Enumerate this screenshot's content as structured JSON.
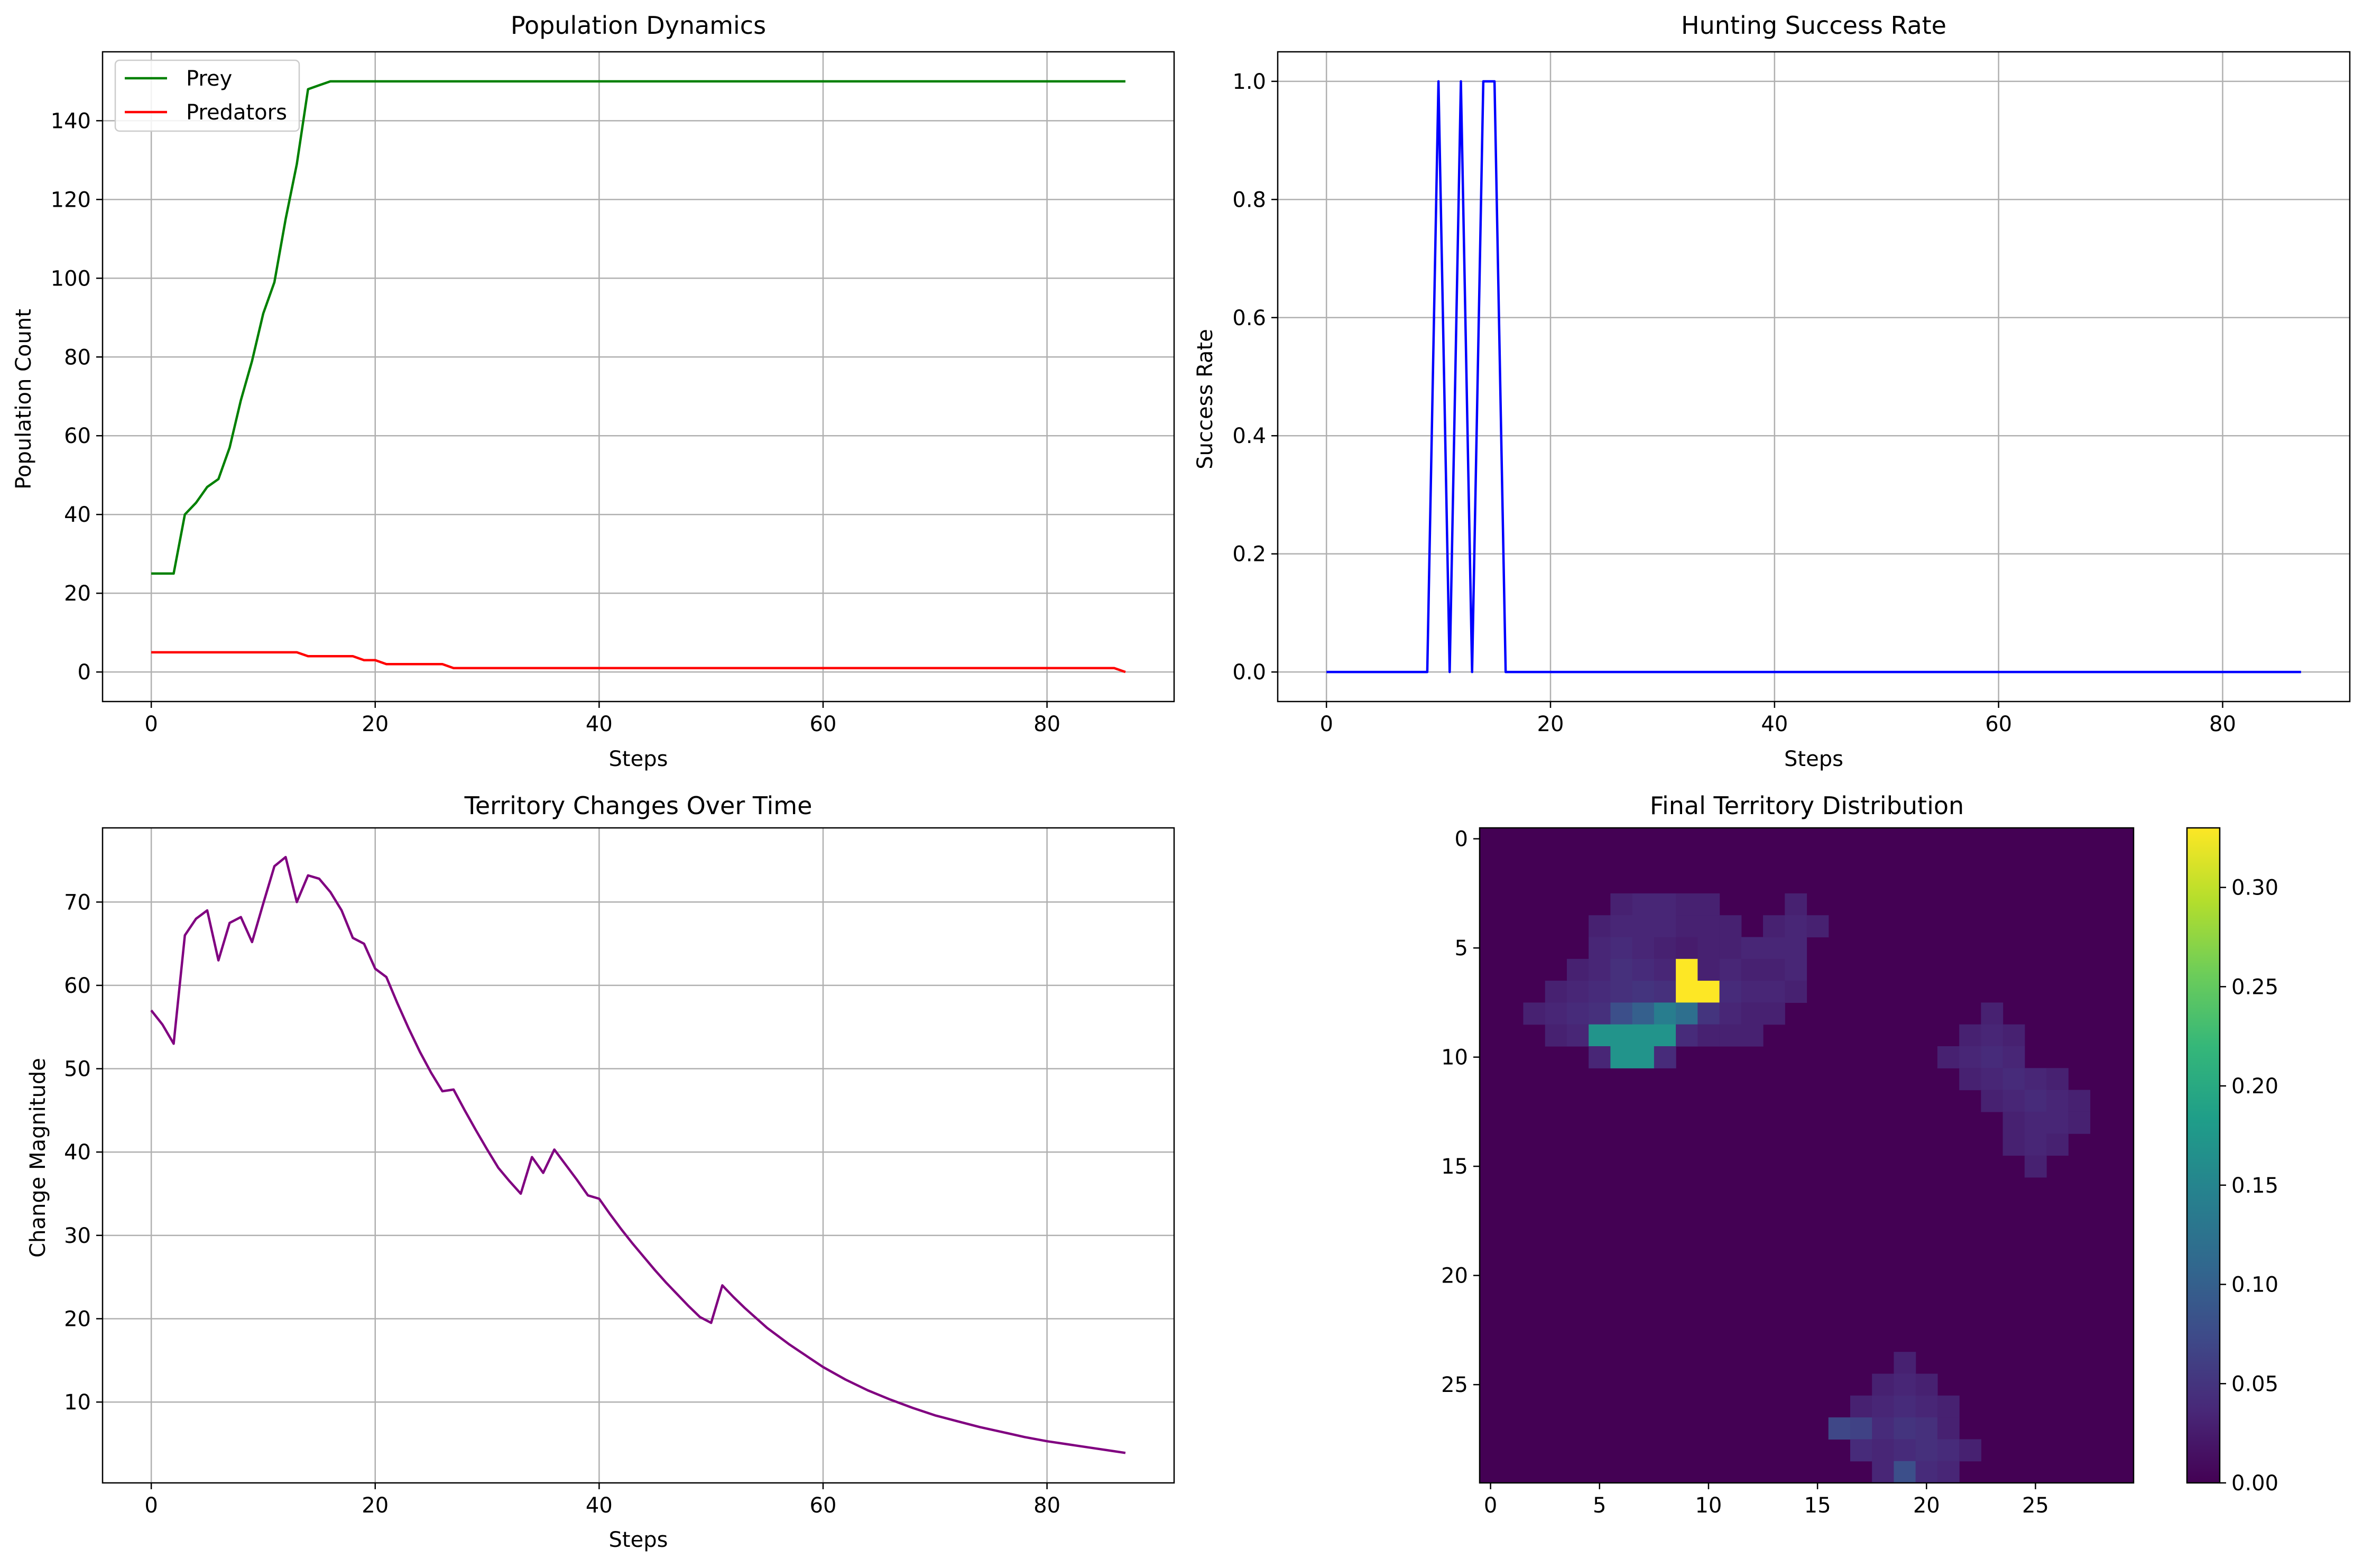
{
  "colors": {
    "prey": "#008000",
    "predators": "#ff0000",
    "success": "#0000ff",
    "territory": "#800080",
    "grid": "#b0b0b0"
  },
  "chart_data": [
    {
      "id": "population",
      "type": "line",
      "title": "Population Dynamics",
      "xlabel": "Steps",
      "ylabel": "Population Count",
      "xlim": [
        -4.35,
        91.35
      ],
      "ylim": [
        -7.5,
        157.5
      ],
      "xticks": [
        0,
        20,
        40,
        60,
        80
      ],
      "yticks": [
        0,
        20,
        40,
        60,
        80,
        100,
        120,
        140
      ],
      "grid": true,
      "legend": "top-left",
      "series": [
        {
          "name": "Prey",
          "color": "#008000",
          "x": [
            0,
            1,
            2,
            3,
            4,
            5,
            6,
            7,
            8,
            9,
            10,
            11,
            12,
            13,
            14,
            15,
            16,
            17,
            87
          ],
          "y": [
            25,
            25,
            25,
            40,
            43,
            47,
            49,
            57,
            69,
            79,
            91,
            99,
            115,
            129,
            148,
            149,
            150,
            150,
            150
          ]
        },
        {
          "name": "Predators",
          "color": "#ff0000",
          "x": [
            0,
            13,
            14,
            18,
            19,
            20,
            21,
            26,
            27,
            86,
            87
          ],
          "y": [
            5,
            5,
            4,
            4,
            3,
            3,
            2,
            2,
            1,
            1,
            0
          ]
        }
      ]
    },
    {
      "id": "hunting",
      "type": "line",
      "title": "Hunting Success Rate",
      "xlabel": "Steps",
      "ylabel": "Success Rate",
      "xlim": [
        -4.35,
        91.35
      ],
      "ylim": [
        -0.05,
        1.05
      ],
      "xticks": [
        0,
        20,
        40,
        60,
        80
      ],
      "yticks": [
        0.0,
        0.2,
        0.4,
        0.6,
        0.8,
        1.0
      ],
      "ytick_labels": [
        "0.0",
        "0.2",
        "0.4",
        "0.6",
        "0.8",
        "1.0"
      ],
      "grid": true,
      "series": [
        {
          "color": "#0000ff",
          "x": [
            0,
            9,
            10,
            11,
            12,
            13,
            14,
            15,
            16,
            87
          ],
          "y": [
            0,
            0,
            1,
            0,
            1,
            0,
            1,
            1,
            0,
            0
          ]
        }
      ]
    },
    {
      "id": "territory_changes",
      "type": "line",
      "title": "Territory Changes Over Time",
      "xlabel": "Steps",
      "ylabel": "Change Magnitude",
      "xlim": [
        -4.35,
        91.35
      ],
      "ylim": [
        0.3,
        78.9
      ],
      "xticks": [
        0,
        20,
        40,
        60,
        80
      ],
      "yticks": [
        10,
        20,
        30,
        40,
        50,
        60,
        70
      ],
      "grid": true,
      "series": [
        {
          "color": "#800080",
          "x": [
            0,
            1,
            2,
            3,
            4,
            5,
            6,
            7,
            8,
            9,
            10,
            11,
            12,
            13,
            14,
            15,
            16,
            17,
            18,
            19,
            20,
            21,
            22,
            23,
            24,
            25,
            26,
            27,
            28,
            29,
            30,
            31,
            32,
            33,
            34,
            35,
            36,
            37,
            38,
            39,
            40,
            41,
            42,
            43,
            44,
            45,
            46,
            47,
            48,
            49,
            50,
            51,
            52,
            53,
            54,
            55,
            56,
            57,
            58,
            59,
            60,
            62,
            64,
            66,
            68,
            70,
            72,
            74,
            76,
            78,
            80,
            82,
            84,
            86,
            87
          ],
          "y": [
            57.0,
            55.3,
            53.0,
            66.0,
            68.0,
            69.0,
            63.0,
            67.5,
            68.2,
            65.2,
            69.8,
            74.3,
            75.4,
            70.0,
            73.2,
            72.8,
            71.2,
            69.0,
            65.7,
            65.0,
            62.0,
            61.0,
            57.8,
            54.8,
            52.0,
            49.5,
            47.3,
            47.5,
            45.0,
            42.6,
            40.3,
            38.1,
            36.5,
            35.0,
            39.4,
            37.5,
            40.3,
            38.5,
            36.7,
            34.8,
            34.4,
            32.5,
            30.7,
            29.0,
            27.4,
            25.8,
            24.3,
            22.9,
            21.5,
            20.2,
            19.5,
            24.0,
            22.6,
            21.3,
            20.1,
            18.9,
            17.9,
            16.9,
            16.0,
            15.1,
            14.2,
            12.7,
            11.4,
            10.3,
            9.3,
            8.4,
            7.7,
            7.0,
            6.4,
            5.8,
            5.3,
            4.9,
            4.5,
            4.1,
            3.9
          ]
        }
      ]
    },
    {
      "id": "final_territory",
      "type": "heatmap",
      "title": "Final Territory Distribution",
      "grid_size": 30,
      "xticks": [
        0,
        5,
        10,
        15,
        20,
        25
      ],
      "yticks": [
        0,
        5,
        10,
        15,
        20,
        25
      ],
      "colorbar_ticks": [
        0.0,
        0.05,
        0.1,
        0.15,
        0.2,
        0.25,
        0.3
      ],
      "colorbar_labels": [
        "0.00",
        "0.05",
        "0.10",
        "0.15",
        "0.20",
        "0.25",
        "0.30"
      ],
      "vmin": 0.0,
      "vmax": 0.33,
      "colormap": "viridis",
      "cells": [
        [
          3,
          6,
          0.03
        ],
        [
          3,
          7,
          0.035
        ],
        [
          3,
          8,
          0.035
        ],
        [
          3,
          9,
          0.03
        ],
        [
          3,
          10,
          0.03
        ],
        [
          4,
          5,
          0.03
        ],
        [
          4,
          6,
          0.035
        ],
        [
          4,
          7,
          0.035
        ],
        [
          4,
          8,
          0.035
        ],
        [
          4,
          9,
          0.03
        ],
        [
          4,
          10,
          0.03
        ],
        [
          4,
          11,
          0.03
        ],
        [
          5,
          5,
          0.035
        ],
        [
          5,
          6,
          0.04
        ],
        [
          5,
          7,
          0.035
        ],
        [
          5,
          8,
          0.03
        ],
        [
          5,
          9,
          0.025
        ],
        [
          5,
          10,
          0.03
        ],
        [
          5,
          11,
          0.03
        ],
        [
          5,
          12,
          0.035
        ],
        [
          5,
          13,
          0.035
        ],
        [
          5,
          14,
          0.035
        ],
        [
          6,
          4,
          0.03
        ],
        [
          6,
          5,
          0.035
        ],
        [
          6,
          6,
          0.045
        ],
        [
          6,
          7,
          0.04
        ],
        [
          6,
          8,
          0.035
        ],
        [
          6,
          9,
          0.33
        ],
        [
          6,
          10,
          0.03
        ],
        [
          6,
          11,
          0.035
        ],
        [
          6,
          12,
          0.03
        ],
        [
          6,
          13,
          0.03
        ],
        [
          6,
          14,
          0.035
        ],
        [
          7,
          3,
          0.03
        ],
        [
          7,
          4,
          0.035
        ],
        [
          7,
          5,
          0.04
        ],
        [
          7,
          6,
          0.045
        ],
        [
          7,
          7,
          0.05
        ],
        [
          7,
          8,
          0.045
        ],
        [
          7,
          9,
          0.33
        ],
        [
          7,
          10,
          0.33
        ],
        [
          7,
          11,
          0.04
        ],
        [
          7,
          12,
          0.035
        ],
        [
          7,
          13,
          0.035
        ],
        [
          7,
          14,
          0.03
        ],
        [
          8,
          2,
          0.03
        ],
        [
          8,
          3,
          0.035
        ],
        [
          8,
          4,
          0.04
        ],
        [
          8,
          5,
          0.045
        ],
        [
          8,
          6,
          0.08
        ],
        [
          8,
          7,
          0.1
        ],
        [
          8,
          8,
          0.14
        ],
        [
          8,
          9,
          0.12
        ],
        [
          8,
          10,
          0.05
        ],
        [
          8,
          11,
          0.035
        ],
        [
          8,
          12,
          0.03
        ],
        [
          8,
          13,
          0.03
        ],
        [
          9,
          3,
          0.03
        ],
        [
          9,
          4,
          0.035
        ],
        [
          9,
          5,
          0.17
        ],
        [
          9,
          6,
          0.17
        ],
        [
          9,
          7,
          0.17
        ],
        [
          9,
          8,
          0.17
        ],
        [
          9,
          9,
          0.04
        ],
        [
          9,
          10,
          0.03
        ],
        [
          9,
          11,
          0.03
        ],
        [
          9,
          12,
          0.03
        ],
        [
          10,
          5,
          0.035
        ],
        [
          10,
          6,
          0.17
        ],
        [
          10,
          7,
          0.17
        ],
        [
          10,
          8,
          0.04
        ],
        [
          3,
          14,
          0.03
        ],
        [
          4,
          13,
          0.03
        ],
        [
          4,
          14,
          0.035
        ],
        [
          4,
          15,
          0.03
        ],
        [
          8,
          23,
          0.03
        ],
        [
          9,
          22,
          0.03
        ],
        [
          9,
          23,
          0.035
        ],
        [
          9,
          24,
          0.03
        ],
        [
          10,
          21,
          0.03
        ],
        [
          10,
          22,
          0.035
        ],
        [
          10,
          23,
          0.04
        ],
        [
          10,
          24,
          0.035
        ],
        [
          11,
          22,
          0.03
        ],
        [
          11,
          23,
          0.035
        ],
        [
          11,
          24,
          0.04
        ],
        [
          11,
          25,
          0.035
        ],
        [
          11,
          26,
          0.03
        ],
        [
          12,
          23,
          0.03
        ],
        [
          12,
          24,
          0.035
        ],
        [
          12,
          25,
          0.04
        ],
        [
          12,
          26,
          0.035
        ],
        [
          12,
          27,
          0.03
        ],
        [
          13,
          24,
          0.03
        ],
        [
          13,
          25,
          0.035
        ],
        [
          13,
          26,
          0.035
        ],
        [
          13,
          27,
          0.03
        ],
        [
          14,
          24,
          0.03
        ],
        [
          14,
          25,
          0.035
        ],
        [
          14,
          26,
          0.03
        ],
        [
          15,
          25,
          0.03
        ],
        [
          24,
          19,
          0.03
        ],
        [
          25,
          18,
          0.03
        ],
        [
          25,
          19,
          0.035
        ],
        [
          25,
          20,
          0.03
        ],
        [
          26,
          17,
          0.03
        ],
        [
          26,
          18,
          0.035
        ],
        [
          26,
          19,
          0.04
        ],
        [
          26,
          20,
          0.035
        ],
        [
          26,
          21,
          0.03
        ],
        [
          27,
          16,
          0.07
        ],
        [
          27,
          17,
          0.065
        ],
        [
          27,
          18,
          0.04
        ],
        [
          27,
          19,
          0.05
        ],
        [
          27,
          20,
          0.045
        ],
        [
          27,
          21,
          0.03
        ],
        [
          28,
          17,
          0.04
        ],
        [
          28,
          18,
          0.035
        ],
        [
          28,
          19,
          0.04
        ],
        [
          28,
          20,
          0.045
        ],
        [
          28,
          21,
          0.04
        ],
        [
          28,
          22,
          0.03
        ],
        [
          29,
          18,
          0.035
        ],
        [
          29,
          19,
          0.08
        ],
        [
          29,
          20,
          0.04
        ],
        [
          29,
          21,
          0.035
        ]
      ]
    }
  ]
}
